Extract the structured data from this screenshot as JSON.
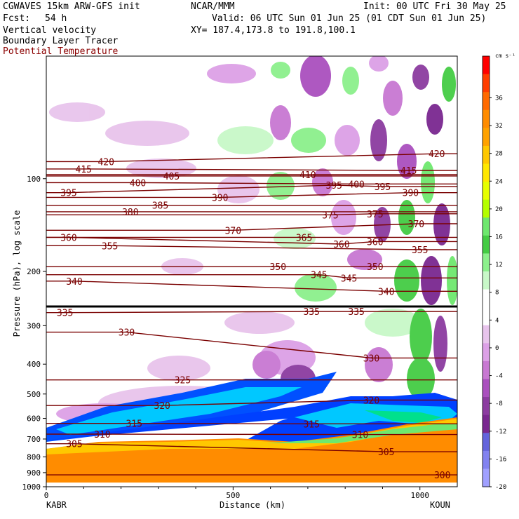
{
  "header": {
    "model": "CGWAVES 15km ARW-GFS init",
    "org": "NCAR/MMM",
    "init": "Init: 00 UTC Fri 30 May 25",
    "fcst_label": "Fcst:",
    "fcst_value": "54 h",
    "valid": "Valid: 06 UTC Sun 01 Jun 25 (01 CDT Sun 01 Jun 25)",
    "field1": "Vertical velocity",
    "field2": "Boundary Layer Tracer",
    "field3": "Potential Temperature",
    "xy": "XY= 187.4,173.8 to 191.8,100.1"
  },
  "chart_data": {
    "type": "heatmap",
    "title": "Vertical velocity",
    "ylabel": "Pressure (hPa), log scale",
    "xlabel": "Distance (km)",
    "x_ticks": [
      0,
      500,
      1000
    ],
    "y_ticks": [
      100,
      200,
      300,
      400,
      500,
      600,
      700,
      800,
      900,
      1000
    ],
    "xlim": [
      0,
      1100
    ],
    "ylim": [
      1000,
      40
    ],
    "y_scale": "log",
    "left_station": "KABR",
    "right_station": "KOUN",
    "colorbar": {
      "unit": "cm s⁻¹",
      "ticks": [
        36,
        32,
        28,
        24,
        20,
        16,
        12,
        8,
        4,
        0,
        -4,
        -8,
        -12,
        -16,
        -20
      ],
      "colors": [
        "#ff0000",
        "#ff3d00",
        "#ff6a00",
        "#ff8c00",
        "#ffa200",
        "#ffc800",
        "#ffe800",
        "#e6ff00",
        "#b4ff00",
        "#6ee86e",
        "#44cc44",
        "#8cf08c",
        "#c8f8c8",
        "#ffffff",
        "#ffffff",
        "#e8c4ec",
        "#dca0e6",
        "#c878d2",
        "#aa50be",
        "#8c3ca0",
        "#7a2890",
        "#6464dc",
        "#8282f0",
        "#a0a0ff"
      ]
    },
    "isentrope_labels": [
      {
        "v": "420",
        "x": 160,
        "p": 88
      },
      {
        "v": "415",
        "x": 100,
        "p": 93
      },
      {
        "v": "405",
        "x": 335,
        "p": 98
      },
      {
        "v": "400",
        "x": 245,
        "p": 103
      },
      {
        "v": "395",
        "x": 60,
        "p": 111
      },
      {
        "v": "390",
        "x": 465,
        "p": 115
      },
      {
        "v": "385",
        "x": 305,
        "p": 122
      },
      {
        "v": "380",
        "x": 225,
        "p": 128
      },
      {
        "v": "370",
        "x": 500,
        "p": 147
      },
      {
        "v": "360",
        "x": 60,
        "p": 155
      },
      {
        "v": "355",
        "x": 170,
        "p": 165
      },
      {
        "v": "340",
        "x": 75,
        "p": 215
      },
      {
        "v": "335",
        "x": 50,
        "p": 272
      },
      {
        "v": "330",
        "x": 215,
        "p": 315
      },
      {
        "v": "325",
        "x": 365,
        "p": 450
      },
      {
        "v": "320",
        "x": 310,
        "p": 545
      },
      {
        "v": "315",
        "x": 235,
        "p": 623
      },
      {
        "v": "310",
        "x": 150,
        "p": 675
      },
      {
        "v": "305",
        "x": 75,
        "p": 725
      },
      {
        "v": "410",
        "x": 700,
        "p": 97
      },
      {
        "v": "395",
        "x": 770,
        "p": 105
      },
      {
        "v": "400",
        "x": 830,
        "p": 104
      },
      {
        "v": "395",
        "x": 900,
        "p": 106
      },
      {
        "v": "415",
        "x": 970,
        "p": 94
      },
      {
        "v": "420",
        "x": 1045,
        "p": 83
      },
      {
        "v": "390",
        "x": 975,
        "p": 111
      },
      {
        "v": "375",
        "x": 760,
        "p": 131
      },
      {
        "v": "375",
        "x": 880,
        "p": 130
      },
      {
        "v": "370",
        "x": 990,
        "p": 140
      },
      {
        "v": "365",
        "x": 690,
        "p": 155
      },
      {
        "v": "360",
        "x": 790,
        "p": 163
      },
      {
        "v": "360",
        "x": 880,
        "p": 160
      },
      {
        "v": "355",
        "x": 1000,
        "p": 170
      },
      {
        "v": "350",
        "x": 620,
        "p": 193
      },
      {
        "v": "350",
        "x": 880,
        "p": 193
      },
      {
        "v": "345",
        "x": 730,
        "p": 205
      },
      {
        "v": "345",
        "x": 810,
        "p": 210
      },
      {
        "v": "340",
        "x": 910,
        "p": 232
      },
      {
        "v": "335",
        "x": 710,
        "p": 270
      },
      {
        "v": "335",
        "x": 830,
        "p": 270
      },
      {
        "v": "330",
        "x": 870,
        "p": 382
      },
      {
        "v": "320",
        "x": 870,
        "p": 523
      },
      {
        "v": "315",
        "x": 710,
        "p": 625
      },
      {
        "v": "310",
        "x": 840,
        "p": 677
      },
      {
        "v": "305",
        "x": 910,
        "p": 770
      },
      {
        "v": "300",
        "x": 1060,
        "p": 915
      }
    ]
  }
}
